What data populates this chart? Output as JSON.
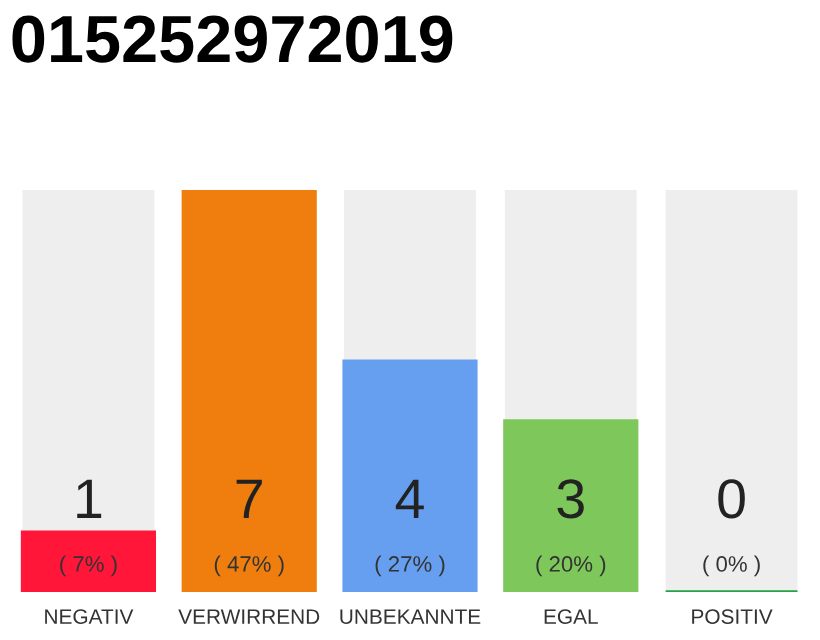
{
  "chart_data": {
    "type": "bar",
    "title": "015252972019",
    "categories": [
      "NEGATIV",
      "VERWIRREND",
      "UNBEKANNTE",
      "EGAL",
      "POSITIV"
    ],
    "values": [
      7,
      47,
      27,
      20,
      0
    ],
    "colors": [
      "#ff1639",
      "#f07e0e",
      "#679ff0",
      "#7dc75b",
      "#25a244"
    ],
    "value_labels": [
      "( 7% )",
      "( 47% )",
      "( 27% )",
      "( 20% )",
      "( 0% )"
    ],
    "annotations": [
      "1",
      "7",
      "4",
      "3",
      "0"
    ]
  }
}
